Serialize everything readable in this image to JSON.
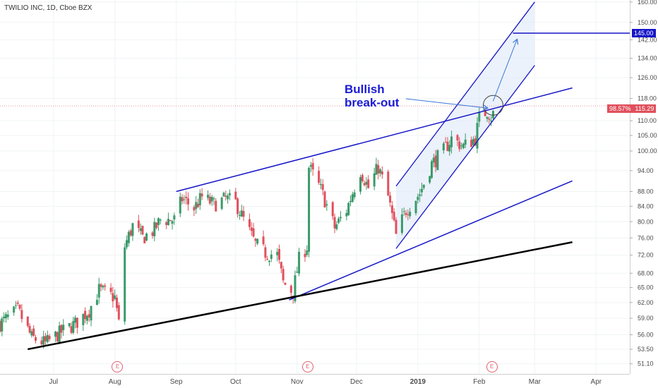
{
  "header": {
    "title": "TWILIO INC, 1D, Cboe BZX"
  },
  "annotation": {
    "line1": "Bullish",
    "line2": "break-out"
  },
  "price_labels": {
    "target": "145.00",
    "current_pct": "98.57%",
    "current_price": "115.29",
    "target_color": "#1515c8",
    "current_color": "#e0505c"
  },
  "earnings_markers": [
    {
      "label": "E",
      "date": "2018-08-02"
    },
    {
      "label": "E",
      "date": "2018-11-06"
    },
    {
      "label": "E",
      "date": "2019-02-07"
    }
  ],
  "colors": {
    "up": "#3a9a6a",
    "down": "#e0505c",
    "trendline": "#1515c8",
    "support": "#000000",
    "channel_fill": "#dde8f8"
  },
  "chart_data": {
    "type": "candlestick",
    "title": "TWILIO INC, 1D, Cboe BZX",
    "xlabel": "",
    "ylabel": "",
    "x_ticks": [
      "Jul",
      "Aug",
      "Sep",
      "Oct",
      "Nov",
      "Dec",
      "2019",
      "Feb",
      "Mar",
      "Apr"
    ],
    "x_tick_dates": [
      "2018-07-01",
      "2018-08-01",
      "2018-09-01",
      "2018-10-01",
      "2018-11-01",
      "2018-12-01",
      "2019-01-01",
      "2019-02-01",
      "2019-03-01",
      "2019-04-01"
    ],
    "y_ticks": [
      51.1,
      53.5,
      56.0,
      59.0,
      62.0,
      65.0,
      68.0,
      72.0,
      76.0,
      80.0,
      84.0,
      88.0,
      94.0,
      100.0,
      105.0,
      110.0,
      118.0,
      126.0,
      134.0,
      142.0,
      150.0,
      160.0
    ],
    "y_scale": "log",
    "ylim": [
      49.5,
      161
    ],
    "xlim": [
      "2018-06-04",
      "2019-04-18"
    ],
    "grid": true,
    "segments": [
      {
        "name": "Close",
        "points": [
          [
            "2018-06-04",
            58.0
          ],
          [
            "2018-06-13",
            60.5
          ],
          [
            "2018-06-20",
            55.5
          ],
          [
            "2018-06-27",
            54.5
          ],
          [
            "2018-07-05",
            56.5
          ],
          [
            "2018-07-12",
            58.0
          ],
          [
            "2018-07-19",
            60.5
          ],
          [
            "2018-07-24",
            64.5
          ],
          [
            "2018-08-01",
            63.0
          ],
          [
            "2018-08-03",
            58.0
          ],
          [
            "2018-08-06",
            74.0
          ],
          [
            "2018-08-10",
            79.0
          ],
          [
            "2018-08-15",
            76.0
          ],
          [
            "2018-08-21",
            78.0
          ],
          [
            "2018-08-24",
            80.5
          ],
          [
            "2018-08-31",
            80.5
          ],
          [
            "2018-09-04",
            86.0
          ],
          [
            "2018-09-10",
            83.5
          ],
          [
            "2018-09-14",
            86.5
          ],
          [
            "2018-09-20",
            84.5
          ],
          [
            "2018-09-26",
            86.0
          ],
          [
            "2018-10-01",
            85.0
          ],
          [
            "2018-10-05",
            80.5
          ],
          [
            "2018-10-11",
            74.5
          ],
          [
            "2018-10-16",
            72.5
          ],
          [
            "2018-10-22",
            72.0
          ],
          [
            "2018-10-25",
            66.0
          ],
          [
            "2018-10-30",
            64.0
          ],
          [
            "2018-11-02",
            71.0
          ],
          [
            "2018-11-06",
            74.0
          ],
          [
            "2018-11-07",
            95.0
          ],
          [
            "2018-11-13",
            88.5
          ],
          [
            "2018-11-20",
            78.5
          ],
          [
            "2018-11-26",
            83.0
          ],
          [
            "2018-12-03",
            94.0
          ],
          [
            "2018-12-07",
            89.0
          ],
          [
            "2018-12-12",
            95.0
          ],
          [
            "2018-12-17",
            86.5
          ],
          [
            "2018-12-21",
            76.5
          ],
          [
            "2018-12-26",
            83.0
          ],
          [
            "2019-01-02",
            87.5
          ],
          [
            "2019-01-08",
            96.0
          ],
          [
            "2019-01-14",
            100.0
          ],
          [
            "2019-01-18",
            104.0
          ],
          [
            "2019-01-24",
            101.5
          ],
          [
            "2019-01-30",
            104.0
          ],
          [
            "2019-02-01",
            111.0
          ],
          [
            "2019-02-05",
            113.5
          ],
          [
            "2019-02-07",
            111.5
          ],
          [
            "2019-02-11",
            115.3
          ]
        ]
      },
      {
        "name": "Trend line (lower channel)",
        "points": [
          [
            "2018-10-28",
            62.5
          ],
          [
            "2019-03-20",
            91.0
          ]
        ]
      },
      {
        "name": "Trend line (upper channel)",
        "points": [
          [
            "2018-09-01",
            88.0
          ],
          [
            "2019-03-20",
            122.0
          ]
        ]
      },
      {
        "name": "Support line",
        "points": [
          [
            "2018-06-18",
            53.5
          ],
          [
            "2019-03-20",
            75.0
          ]
        ]
      },
      {
        "name": "Ascending channel lower",
        "points": [
          [
            "2018-12-21",
            73.5
          ],
          [
            "2019-03-01",
            131.0
          ]
        ]
      },
      {
        "name": "Ascending channel upper",
        "points": [
          [
            "2018-12-21",
            89.5
          ],
          [
            "2019-03-01",
            160.0
          ]
        ]
      },
      {
        "name": "Target level",
        "points": [
          [
            "2019-02-18",
            145.0
          ],
          [
            "2019-04-18",
            145.0
          ]
        ]
      }
    ]
  }
}
